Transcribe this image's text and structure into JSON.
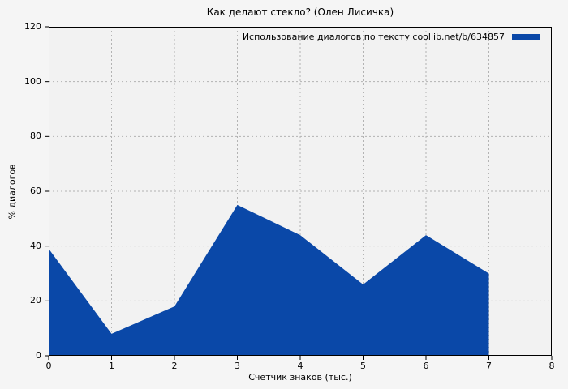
{
  "colors": {
    "figure_bg": "#f5f5f5",
    "plot_bg": "#f2f2f2",
    "area_fill": "#0a48a8",
    "grid": "#b3b3b3",
    "spine": "#000000",
    "text": "#000000"
  },
  "chart_data": {
    "type": "area",
    "title": "Как делают стекло? (Олен Лисичка)",
    "xlabel": "Счетчик знаков (тыс.)",
    "ylabel": "% диалогов",
    "legend": {
      "label": "Использование диалогов по тексту coollib.net/b/634857",
      "position": "top-right"
    },
    "x": [
      0,
      1,
      2,
      3,
      4,
      5,
      6,
      7
    ],
    "values": [
      39,
      8,
      18,
      55,
      44,
      26,
      44,
      30
    ],
    "xlim": [
      0,
      8
    ],
    "ylim": [
      0,
      120
    ],
    "x_ticks": [
      0,
      1,
      2,
      3,
      4,
      5,
      6,
      7,
      8
    ],
    "y_ticks": [
      0,
      20,
      40,
      60,
      80,
      100,
      120
    ],
    "grid": true
  }
}
